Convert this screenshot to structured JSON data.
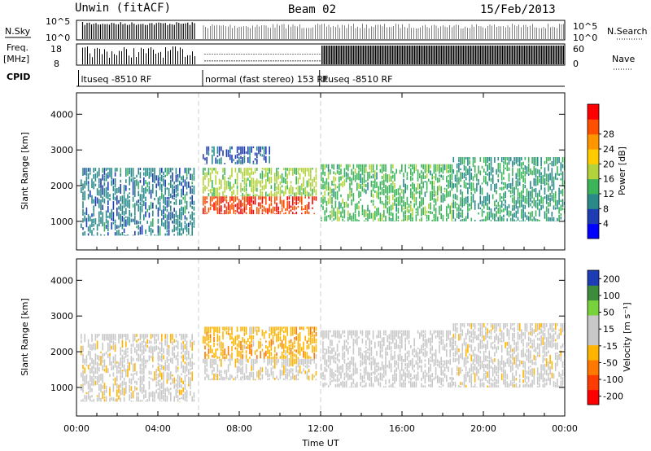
{
  "header": {
    "title_left": "Unwin (fitACF)",
    "title_center": "Beam 02",
    "title_right": "15/Feb/2013"
  },
  "side_labels": {
    "nsky": "N.Sky",
    "freq_line1": "Freq.",
    "freq_line2": "[MHz]",
    "cpid": "CPID",
    "nsearch": "N.Search",
    "nave": "Nave"
  },
  "status_axes": {
    "noise_left_ticks": [
      "10^5",
      "10^0"
    ],
    "noise_right_ticks": [
      "10^5",
      "10^0"
    ],
    "freq_left_ticks": [
      "18",
      "8"
    ],
    "freq_right_ticks": [
      "60",
      "0"
    ]
  },
  "cpid_segments": [
    {
      "label": "ltuseq -8510 RF",
      "start_hour": 0.1
    },
    {
      "label": "normal (fast stereo) 153 RF",
      "start_hour": 6.2
    },
    {
      "label": "ltuseq -8510 RF",
      "start_hour": 11.95
    }
  ],
  "colors": {
    "power_scale": [
      "#0000ff",
      "#1e3cb4",
      "#2a8a8a",
      "#3cb45a",
      "#b4d23c",
      "#ffcc00",
      "#ff9600",
      "#ff5000",
      "#ff0000"
    ],
    "velocity_scale": [
      "#1e3cb4",
      "#3c8c3c",
      "#78d23c",
      "#c8c8c8",
      "#c8c8c8",
      "#ffb400",
      "#ff7800",
      "#ff3c00",
      "#ff0000"
    ]
  },
  "chart_data": [
    {
      "type": "heatmap",
      "name": "Power",
      "xlabel": "",
      "ylabel": "Slant Range [km]",
      "x_ticks": [
        "00:00",
        "04:00",
        "08:00",
        "12:00",
        "16:00",
        "20:00",
        "00:00"
      ],
      "y_ticks": [
        "1000",
        "2000",
        "3000",
        "4000"
      ],
      "xlim": [
        0,
        24
      ],
      "ylim": [
        200,
        4600
      ],
      "colorbar": {
        "label": "Power [dB]",
        "ticks": [
          "4",
          "8",
          "12",
          "16",
          "20",
          "24",
          "28"
        ],
        "range": [
          0,
          30
        ]
      },
      "regions": [
        {
          "x": [
            0.2,
            5.8
          ],
          "y": [
            600,
            2500
          ],
          "value": 8
        },
        {
          "x": [
            6.2,
            11.8
          ],
          "y": [
            1200,
            1700
          ],
          "value": 26
        },
        {
          "x": [
            6.2,
            11.8
          ],
          "y": [
            1700,
            2500
          ],
          "value": 14
        },
        {
          "x": [
            6.2,
            9.5
          ],
          "y": [
            2600,
            3100
          ],
          "value": 6
        },
        {
          "x": [
            12.0,
            18.5
          ],
          "y": [
            1000,
            2600
          ],
          "value": 12
        },
        {
          "x": [
            18.5,
            24.0
          ],
          "y": [
            1000,
            2800
          ],
          "value": 10
        }
      ]
    },
    {
      "type": "heatmap",
      "name": "Velocity",
      "xlabel": "Time UT",
      "ylabel": "Slant Range [km]",
      "x_ticks": [
        "00:00",
        "04:00",
        "08:00",
        "12:00",
        "16:00",
        "20:00",
        "00:00"
      ],
      "y_ticks": [
        "1000",
        "2000",
        "3000",
        "4000"
      ],
      "xlim": [
        0,
        24
      ],
      "ylim": [
        200,
        4600
      ],
      "colorbar": {
        "label": "Velocity [m s⁻¹]",
        "ticks": [
          "200",
          "100",
          "50",
          "15",
          "-15",
          "-50",
          "-100",
          "-200"
        ],
        "range": [
          -250,
          250
        ]
      },
      "regions": [
        {
          "x": [
            0.2,
            5.8
          ],
          "y": [
            600,
            2500
          ],
          "value": 0
        },
        {
          "x": [
            6.2,
            11.8
          ],
          "y": [
            1200,
            1800
          ],
          "value": 0
        },
        {
          "x": [
            6.2,
            11.8
          ],
          "y": [
            1800,
            2700
          ],
          "value": -60
        },
        {
          "x": [
            12.0,
            18.5
          ],
          "y": [
            1000,
            2600
          ],
          "value": 20
        },
        {
          "x": [
            18.5,
            24.0
          ],
          "y": [
            1000,
            2800
          ],
          "value": 0
        }
      ]
    }
  ]
}
